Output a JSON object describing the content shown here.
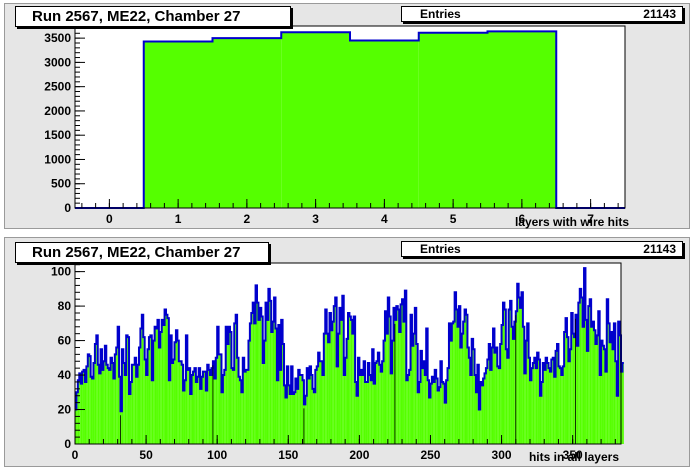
{
  "chart_data": [
    {
      "type": "bar",
      "title": "Run 2567, ME22, Chamber 27",
      "xlabel": "layers with wire hits",
      "ylabel": "",
      "stats": {
        "label": "Entries",
        "value": "21143"
      },
      "x_bins": {
        "low": -0.5,
        "width": 1
      },
      "xlim": [
        -0.5,
        7.5
      ],
      "ylim": [
        0,
        3750
      ],
      "x_ticks": [
        0,
        1,
        2,
        3,
        4,
        5,
        6,
        7
      ],
      "y_ticks": [
        0,
        500,
        1000,
        1500,
        2000,
        2500,
        3000,
        3500
      ],
      "categories": [
        0,
        1,
        2,
        3,
        4,
        5,
        6,
        7
      ],
      "values": [
        0,
        3430,
        3500,
        3620,
        3450,
        3610,
        3640,
        0
      ],
      "fill_color": "#55ff00",
      "line_color": "#0000cc",
      "grid": false
    },
    {
      "type": "bar",
      "title": "Run 2567, ME22, Chamber 27",
      "xlabel": "hits in all layers",
      "ylabel": "",
      "stats": {
        "label": "Entries",
        "value": "21143"
      },
      "x_bins": {
        "low": 0,
        "width": 1
      },
      "xlim": [
        0,
        384
      ],
      "ylim": [
        0,
        105
      ],
      "x_ticks": [
        0,
        50,
        100,
        150,
        200,
        250,
        300,
        350
      ],
      "y_ticks": [
        0,
        20,
        40,
        60,
        80,
        100
      ],
      "values": [
        20,
        30,
        37,
        41,
        35,
        42,
        43,
        36,
        45,
        52,
        51,
        39,
        38,
        47,
        58,
        63,
        46,
        41,
        55,
        43,
        48,
        57,
        46,
        44,
        43,
        50,
        47,
        38,
        52,
        56,
        68,
        39,
        19,
        55,
        47,
        40,
        63,
        62,
        29,
        36,
        46,
        46,
        50,
        39,
        46,
        56,
        67,
        75,
        62,
        49,
        40,
        55,
        62,
        63,
        37,
        60,
        68,
        67,
        72,
        56,
        65,
        72,
        69,
        78,
        75,
        73,
        37,
        63,
        47,
        49,
        59,
        66,
        60,
        48,
        48,
        46,
        31,
        37,
        63,
        43,
        44,
        29,
        40,
        42,
        44,
        36,
        39,
        44,
        32,
        39,
        42,
        42,
        31,
        46,
        43,
        40,
        44,
        48,
        38,
        50,
        68,
        52,
        52,
        30,
        40,
        43,
        68,
        58,
        68,
        65,
        44,
        43,
        70,
        75,
        50,
        39,
        37,
        30,
        50,
        42,
        43,
        43,
        60,
        70,
        76,
        82,
        70,
        92,
        82,
        72,
        79,
        74,
        47,
        60,
        82,
        72,
        90,
        83,
        65,
        71,
        85,
        67,
        37,
        69,
        43,
        72,
        58,
        34,
        27,
        45,
        34,
        29,
        45,
        29,
        30,
        38,
        32,
        43,
        40,
        40,
        37,
        23,
        28,
        44,
        38,
        45,
        40,
        32,
        30,
        43,
        45,
        53,
        48,
        48,
        40,
        64,
        78,
        64,
        59,
        76,
        66,
        71,
        80,
        85,
        45,
        64,
        79,
        72,
        86,
        40,
        50,
        61,
        76,
        74,
        72,
        64,
        74,
        36,
        28,
        50,
        40,
        43,
        40,
        48,
        36,
        36,
        47,
        40,
        37,
        55,
        35,
        47,
        48,
        53,
        46,
        42,
        48,
        60,
        77,
        64,
        85,
        74,
        41,
        60,
        79,
        72,
        80,
        78,
        65,
        81,
        84,
        71,
        89,
        37,
        40,
        43,
        75,
        57,
        64,
        79,
        58,
        30,
        36,
        54,
        44,
        48,
        40,
        67,
        37,
        27,
        35,
        39,
        36,
        43,
        38,
        31,
        33,
        48,
        36,
        35,
        24,
        37,
        44,
        70,
        60,
        70,
        71,
        88,
        78,
        68,
        80,
        56,
        64,
        71,
        78,
        75,
        56,
        50,
        40,
        61,
        55,
        40,
        30,
        46,
        20,
        36,
        34,
        38,
        41,
        44,
        49,
        58,
        43,
        56,
        67,
        53,
        56,
        45,
        44,
        58,
        69,
        82,
        78,
        55,
        50,
        78,
        83,
        68,
        61,
        71,
        77,
        93,
        85,
        79,
        88,
        68,
        41,
        60,
        70,
        50,
        37,
        44,
        47,
        50,
        44,
        53,
        49,
        28,
        36,
        47,
        43,
        50,
        47,
        44,
        42,
        49,
        50,
        39,
        54,
        58,
        45,
        44,
        40,
        45,
        65,
        73,
        62,
        48,
        55,
        76,
        64,
        62,
        75,
        57,
        82,
        90,
        85,
        68,
        102,
        72,
        54,
        80,
        84,
        68,
        71,
        66,
        58,
        63,
        77,
        40,
        60,
        57,
        55,
        42,
        84,
        70,
        59,
        65,
        55,
        70,
        48,
        28,
        71,
        63,
        42,
        47
      ],
      "fill_color": "#55ff00",
      "line_color": "#0000cc",
      "grid": false
    }
  ]
}
